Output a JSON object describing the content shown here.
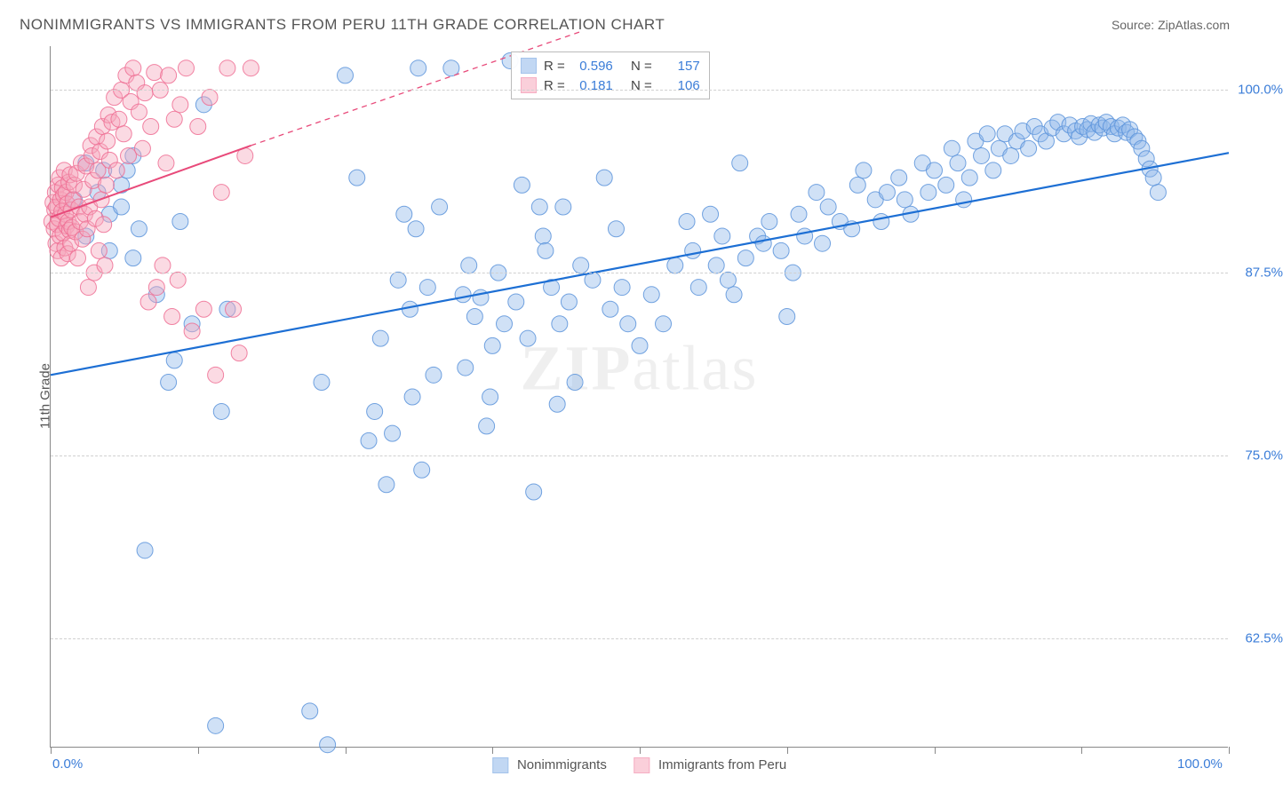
{
  "header": {
    "title": "NONIMMIGRANTS VS IMMIGRANTS FROM PERU 11TH GRADE CORRELATION CHART",
    "source": "Source: ZipAtlas.com"
  },
  "ylabel": "11th Grade",
  "watermark": "ZIPatlas",
  "chart": {
    "type": "scatter",
    "xlim": [
      0,
      100
    ],
    "ylim": [
      55,
      103
    ],
    "x_ticks": [
      0,
      12.5,
      25,
      37.5,
      50,
      62.5,
      75,
      87.5,
      100
    ],
    "y_gridlines": [
      62.5,
      75.0,
      87.5,
      100.0
    ],
    "y_tick_labels": [
      "62.5%",
      "75.0%",
      "87.5%",
      "100.0%"
    ],
    "x_axis_labels": [
      {
        "pos": 0,
        "text": "0.0%"
      },
      {
        "pos": 100,
        "text": "100.0%"
      }
    ],
    "background_color": "#ffffff",
    "grid_color": "#d0d0d0",
    "axis_color": "#888888",
    "marker_radius": 9,
    "marker_opacity": 0.42,
    "marker_stroke_opacity": 0.85,
    "series": [
      {
        "name": "Nonimmigrants",
        "color_fill": "#8fb8ea",
        "color_stroke": "#5a93db",
        "R": "0.596",
        "N": "157",
        "trend": {
          "x1": 0,
          "y1": 80.5,
          "x2": 100,
          "y2": 95.7,
          "color": "#1d6fd4",
          "width": 2.2
        },
        "points": [
          [
            2,
            92.5
          ],
          [
            3,
            95
          ],
          [
            3,
            90
          ],
          [
            4,
            93
          ],
          [
            4.5,
            94.5
          ],
          [
            5,
            89
          ],
          [
            5,
            91.5
          ],
          [
            6,
            92
          ],
          [
            6,
            93.5
          ],
          [
            6.5,
            94.5
          ],
          [
            7,
            88.5
          ],
          [
            7,
            95.5
          ],
          [
            7.5,
            90.5
          ],
          [
            8,
            68.5
          ],
          [
            9,
            86
          ],
          [
            10,
            80
          ],
          [
            10.5,
            81.5
          ],
          [
            11,
            91
          ],
          [
            12,
            84
          ],
          [
            13,
            99
          ],
          [
            14,
            56.5
          ],
          [
            14.5,
            78
          ],
          [
            15,
            85
          ],
          [
            22,
            57.5
          ],
          [
            23,
            80
          ],
          [
            23.5,
            55.2
          ],
          [
            25,
            101
          ],
          [
            26,
            94
          ],
          [
            27,
            76
          ],
          [
            27.5,
            78
          ],
          [
            28,
            83
          ],
          [
            28.5,
            73
          ],
          [
            29,
            76.5
          ],
          [
            29.5,
            87
          ],
          [
            30,
            91.5
          ],
          [
            30.5,
            85
          ],
          [
            30.7,
            79
          ],
          [
            31,
            90.5
          ],
          [
            31.2,
            101.5
          ],
          [
            31.5,
            74
          ],
          [
            32,
            86.5
          ],
          [
            32.5,
            80.5
          ],
          [
            33,
            92
          ],
          [
            34,
            101.5
          ],
          [
            35,
            86
          ],
          [
            35.2,
            81
          ],
          [
            35.5,
            88
          ],
          [
            36,
            84.5
          ],
          [
            36.5,
            85.8
          ],
          [
            37,
            77
          ],
          [
            37.3,
            79
          ],
          [
            37.5,
            82.5
          ],
          [
            38,
            87.5
          ],
          [
            38.5,
            84
          ],
          [
            39,
            102
          ],
          [
            39.5,
            85.5
          ],
          [
            40,
            93.5
          ],
          [
            40.5,
            83
          ],
          [
            41,
            72.5
          ],
          [
            41.5,
            92
          ],
          [
            41.8,
            90
          ],
          [
            42,
            89
          ],
          [
            42.5,
            86.5
          ],
          [
            43,
            78.5
          ],
          [
            43.2,
            84
          ],
          [
            43.5,
            92
          ],
          [
            44,
            85.5
          ],
          [
            44.5,
            80
          ],
          [
            45,
            88
          ],
          [
            46,
            87
          ],
          [
            47,
            94
          ],
          [
            47.5,
            85
          ],
          [
            48,
            90.5
          ],
          [
            48.5,
            86.5
          ],
          [
            49,
            84
          ],
          [
            50,
            82.5
          ],
          [
            51,
            86
          ],
          [
            52,
            84
          ],
          [
            53,
            88
          ],
          [
            54,
            91
          ],
          [
            54.5,
            89
          ],
          [
            55,
            86.5
          ],
          [
            56,
            91.5
          ],
          [
            56.5,
            88
          ],
          [
            57,
            90
          ],
          [
            57.5,
            87
          ],
          [
            58,
            86
          ],
          [
            58.5,
            95
          ],
          [
            59,
            88.5
          ],
          [
            60,
            90
          ],
          [
            60.5,
            89.5
          ],
          [
            61,
            91
          ],
          [
            62,
            89
          ],
          [
            62.5,
            84.5
          ],
          [
            63,
            87.5
          ],
          [
            63.5,
            91.5
          ],
          [
            64,
            90
          ],
          [
            65,
            93
          ],
          [
            65.5,
            89.5
          ],
          [
            66,
            92
          ],
          [
            67,
            91
          ],
          [
            68,
            90.5
          ],
          [
            68.5,
            93.5
          ],
          [
            69,
            94.5
          ],
          [
            70,
            92.5
          ],
          [
            70.5,
            91
          ],
          [
            71,
            93
          ],
          [
            72,
            94
          ],
          [
            72.5,
            92.5
          ],
          [
            73,
            91.5
          ],
          [
            74,
            95
          ],
          [
            74.5,
            93
          ],
          [
            75,
            94.5
          ],
          [
            76,
            93.5
          ],
          [
            76.5,
            96
          ],
          [
            77,
            95
          ],
          [
            77.5,
            92.5
          ],
          [
            78,
            94
          ],
          [
            78.5,
            96.5
          ],
          [
            79,
            95.5
          ],
          [
            79.5,
            97
          ],
          [
            80,
            94.5
          ],
          [
            80.5,
            96
          ],
          [
            81,
            97
          ],
          [
            81.5,
            95.5
          ],
          [
            82,
            96.5
          ],
          [
            82.5,
            97.2
          ],
          [
            83,
            96
          ],
          [
            83.5,
            97.5
          ],
          [
            84,
            97
          ],
          [
            84.5,
            96.5
          ],
          [
            85,
            97.4
          ],
          [
            85.5,
            97.8
          ],
          [
            86,
            97
          ],
          [
            86.5,
            97.6
          ],
          [
            87,
            97.2
          ],
          [
            87.3,
            96.8
          ],
          [
            87.6,
            97.5
          ],
          [
            88,
            97.3
          ],
          [
            88.3,
            97.7
          ],
          [
            88.6,
            97.1
          ],
          [
            89,
            97.6
          ],
          [
            89.3,
            97.4
          ],
          [
            89.6,
            97.8
          ],
          [
            90,
            97.5
          ],
          [
            90.3,
            97
          ],
          [
            90.6,
            97.4
          ],
          [
            91,
            97.6
          ],
          [
            91.3,
            97.1
          ],
          [
            91.6,
            97.3
          ],
          [
            92,
            96.8
          ],
          [
            92.3,
            96.5
          ],
          [
            92.6,
            96
          ],
          [
            93,
            95.3
          ],
          [
            93.3,
            94.6
          ],
          [
            93.6,
            94
          ],
          [
            94,
            93
          ]
        ]
      },
      {
        "name": "Immigrants from Peru",
        "color_fill": "#f6a8bd",
        "color_stroke": "#ef6d93",
        "R": "0.181",
        "N": "106",
        "trend_solid": {
          "x1": 0,
          "y1": 91.3,
          "x2": 17,
          "y2": 96.2,
          "color": "#e84a7a",
          "width": 2
        },
        "trend_dashed": {
          "x1": 17,
          "y1": 96.2,
          "x2": 45,
          "y2": 104,
          "color": "#e84a7a",
          "width": 1.3
        },
        "points": [
          [
            0.1,
            91
          ],
          [
            0.2,
            92.3
          ],
          [
            0.3,
            90.5
          ],
          [
            0.35,
            91.8
          ],
          [
            0.4,
            93
          ],
          [
            0.45,
            89.5
          ],
          [
            0.5,
            92
          ],
          [
            0.55,
            90.8
          ],
          [
            0.6,
            89
          ],
          [
            0.65,
            93.5
          ],
          [
            0.7,
            91.2
          ],
          [
            0.75,
            94
          ],
          [
            0.8,
            90
          ],
          [
            0.85,
            92.5
          ],
          [
            0.9,
            88.5
          ],
          [
            0.95,
            91.7
          ],
          [
            1,
            93.3
          ],
          [
            1.05,
            90.2
          ],
          [
            1.1,
            92.8
          ],
          [
            1.15,
            94.5
          ],
          [
            1.2,
            89.2
          ],
          [
            1.25,
            91.5
          ],
          [
            1.3,
            93
          ],
          [
            1.35,
            90.7
          ],
          [
            1.4,
            92.2
          ],
          [
            1.45,
            88.8
          ],
          [
            1.5,
            91
          ],
          [
            1.55,
            93.7
          ],
          [
            1.6,
            90.4
          ],
          [
            1.65,
            94.2
          ],
          [
            1.7,
            89.5
          ],
          [
            1.75,
            91.8
          ],
          [
            1.8,
            90.6
          ],
          [
            1.9,
            92.5
          ],
          [
            2,
            93.5
          ],
          [
            2.1,
            90.3
          ],
          [
            2.2,
            94.3
          ],
          [
            2.3,
            88.5
          ],
          [
            2.4,
            92
          ],
          [
            2.5,
            91
          ],
          [
            2.6,
            95
          ],
          [
            2.7,
            89.8
          ],
          [
            2.8,
            93.2
          ],
          [
            2.9,
            91.5
          ],
          [
            3,
            94.8
          ],
          [
            3.1,
            90.5
          ],
          [
            3.2,
            86.5
          ],
          [
            3.3,
            92
          ],
          [
            3.4,
            96.2
          ],
          [
            3.5,
            95.5
          ],
          [
            3.6,
            93.8
          ],
          [
            3.7,
            87.5
          ],
          [
            3.8,
            91.2
          ],
          [
            3.9,
            96.8
          ],
          [
            4,
            94.5
          ],
          [
            4.1,
            89
          ],
          [
            4.2,
            95.8
          ],
          [
            4.3,
            92.5
          ],
          [
            4.4,
            97.5
          ],
          [
            4.5,
            90.8
          ],
          [
            4.6,
            88
          ],
          [
            4.7,
            93.5
          ],
          [
            4.8,
            96.5
          ],
          [
            4.9,
            98.3
          ],
          [
            5,
            95.2
          ],
          [
            5.2,
            97.8
          ],
          [
            5.4,
            99.5
          ],
          [
            5.6,
            94.5
          ],
          [
            5.8,
            98
          ],
          [
            6,
            100
          ],
          [
            6.2,
            97
          ],
          [
            6.4,
            101
          ],
          [
            6.6,
            95.5
          ],
          [
            6.8,
            99.2
          ],
          [
            7,
            101.5
          ],
          [
            7.3,
            100.5
          ],
          [
            7.5,
            98.5
          ],
          [
            7.8,
            96
          ],
          [
            8,
            99.8
          ],
          [
            8.3,
            85.5
          ],
          [
            8.5,
            97.5
          ],
          [
            8.8,
            101.2
          ],
          [
            9,
            86.5
          ],
          [
            9.3,
            100
          ],
          [
            9.5,
            88
          ],
          [
            9.8,
            95
          ],
          [
            10,
            101
          ],
          [
            10.3,
            84.5
          ],
          [
            10.5,
            98
          ],
          [
            10.8,
            87
          ],
          [
            11,
            99
          ],
          [
            11.5,
            101.5
          ],
          [
            12,
            83.5
          ],
          [
            12.5,
            97.5
          ],
          [
            13,
            85
          ],
          [
            13.5,
            99.5
          ],
          [
            14,
            80.5
          ],
          [
            14.5,
            93
          ],
          [
            15,
            101.5
          ],
          [
            15.5,
            85
          ],
          [
            16,
            82
          ],
          [
            16.5,
            95.5
          ],
          [
            17,
            101.5
          ]
        ]
      }
    ]
  },
  "footer_legend": [
    {
      "label": "Nonimmigrants",
      "fill": "#8fb8ea",
      "stroke": "#5a93db"
    },
    {
      "label": "Immigrants from Peru",
      "fill": "#f6a8bd",
      "stroke": "#ef6d93"
    }
  ],
  "stats_labels": {
    "r": "R =",
    "n": "N ="
  }
}
